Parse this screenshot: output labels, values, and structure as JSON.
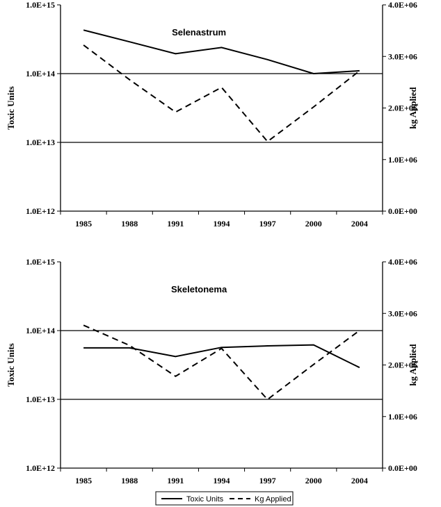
{
  "chart_data": [
    {
      "type": "line",
      "title": "Selenastrum",
      "ylabel": "Toxic Units",
      "y2label": "kg Applied",
      "yscale": "log",
      "ylim": [
        1000000000000.0,
        1000000000000000.0
      ],
      "y2lim": [
        0,
        4000000
      ],
      "y_ticks": [
        "1.0E+12",
        "1.0E+13",
        "1.0E+14",
        "1.0E+15"
      ],
      "y2_ticks": [
        "0.0E+00",
        "1.0E+06",
        "2.0E+06",
        "3.0E+06",
        "4.0E+06"
      ],
      "categories": [
        "1985",
        "1988",
        "1991",
        "1994",
        "1997",
        "2000",
        "2004"
      ],
      "gridlines": [
        10000000000000.0,
        100000000000000.0
      ],
      "series": [
        {
          "name": "Toxic Units",
          "axis": "left",
          "style": "solid",
          "values": [
            430000000000000.0,
            290000000000000.0,
            195000000000000.0,
            240000000000000.0,
            160000000000000.0,
            100000000000000.0,
            110000000000000.0
          ]
        },
        {
          "name": "Kg Applied",
          "axis": "right",
          "style": "dashed",
          "values": [
            3220000,
            2550000,
            1920000,
            2400000,
            1350000,
            2020000,
            2720000
          ]
        }
      ]
    },
    {
      "type": "line",
      "title": "Skeletonema",
      "ylabel": "Toxic Units",
      "y2label": "kg Applied",
      "yscale": "log",
      "ylim": [
        1000000000000.0,
        1000000000000000.0
      ],
      "y2lim": [
        0,
        4000000
      ],
      "y_ticks": [
        "1.0E+12",
        "1.0E+13",
        "1.0E+14",
        "1.0E+15"
      ],
      "y2_ticks": [
        "0.0E+00",
        "1.0E+06",
        "2.0E+06",
        "3.0E+06",
        "4.0E+06"
      ],
      "categories": [
        "1985",
        "1988",
        "1991",
        "1994",
        "1997",
        "2000",
        "2004"
      ],
      "gridlines": [
        10000000000000.0,
        100000000000000.0
      ],
      "series": [
        {
          "name": "Toxic Units",
          "axis": "left",
          "style": "solid",
          "values": [
            56000000000000.0,
            56000000000000.0,
            42000000000000.0,
            57000000000000.0,
            60000000000000.0,
            62000000000000.0,
            29000000000000.0
          ]
        },
        {
          "name": "Kg Applied",
          "axis": "right",
          "style": "dashed",
          "values": [
            2770000,
            2380000,
            1780000,
            2320000,
            1330000,
            2010000,
            2670000
          ]
        }
      ]
    }
  ],
  "legend": {
    "items": [
      {
        "label": "Toxic Units",
        "style": "solid"
      },
      {
        "label": "Kg Applied",
        "style": "dashed"
      }
    ]
  }
}
